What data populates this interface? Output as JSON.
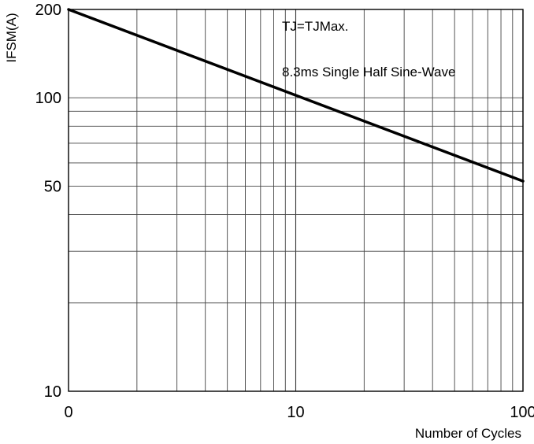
{
  "chart_data": {
    "type": "line",
    "title": "",
    "xlabel": "Number of Cycles",
    "ylabel": "IFSM(A)",
    "x_scale": "log",
    "y_scale": "log",
    "xlim": [
      1,
      100
    ],
    "ylim": [
      10,
      200
    ],
    "x_tick_labels": [
      "0",
      "10",
      "100"
    ],
    "y_tick_labels": [
      "10",
      "50",
      "100",
      "200"
    ],
    "grid": true,
    "annotations": [
      "TJ=TJMax.",
      "8.3ms Single Half Sine-Wave"
    ],
    "series": [
      {
        "x": [
          1,
          100
        ],
        "y": [
          200,
          52
        ]
      }
    ]
  }
}
